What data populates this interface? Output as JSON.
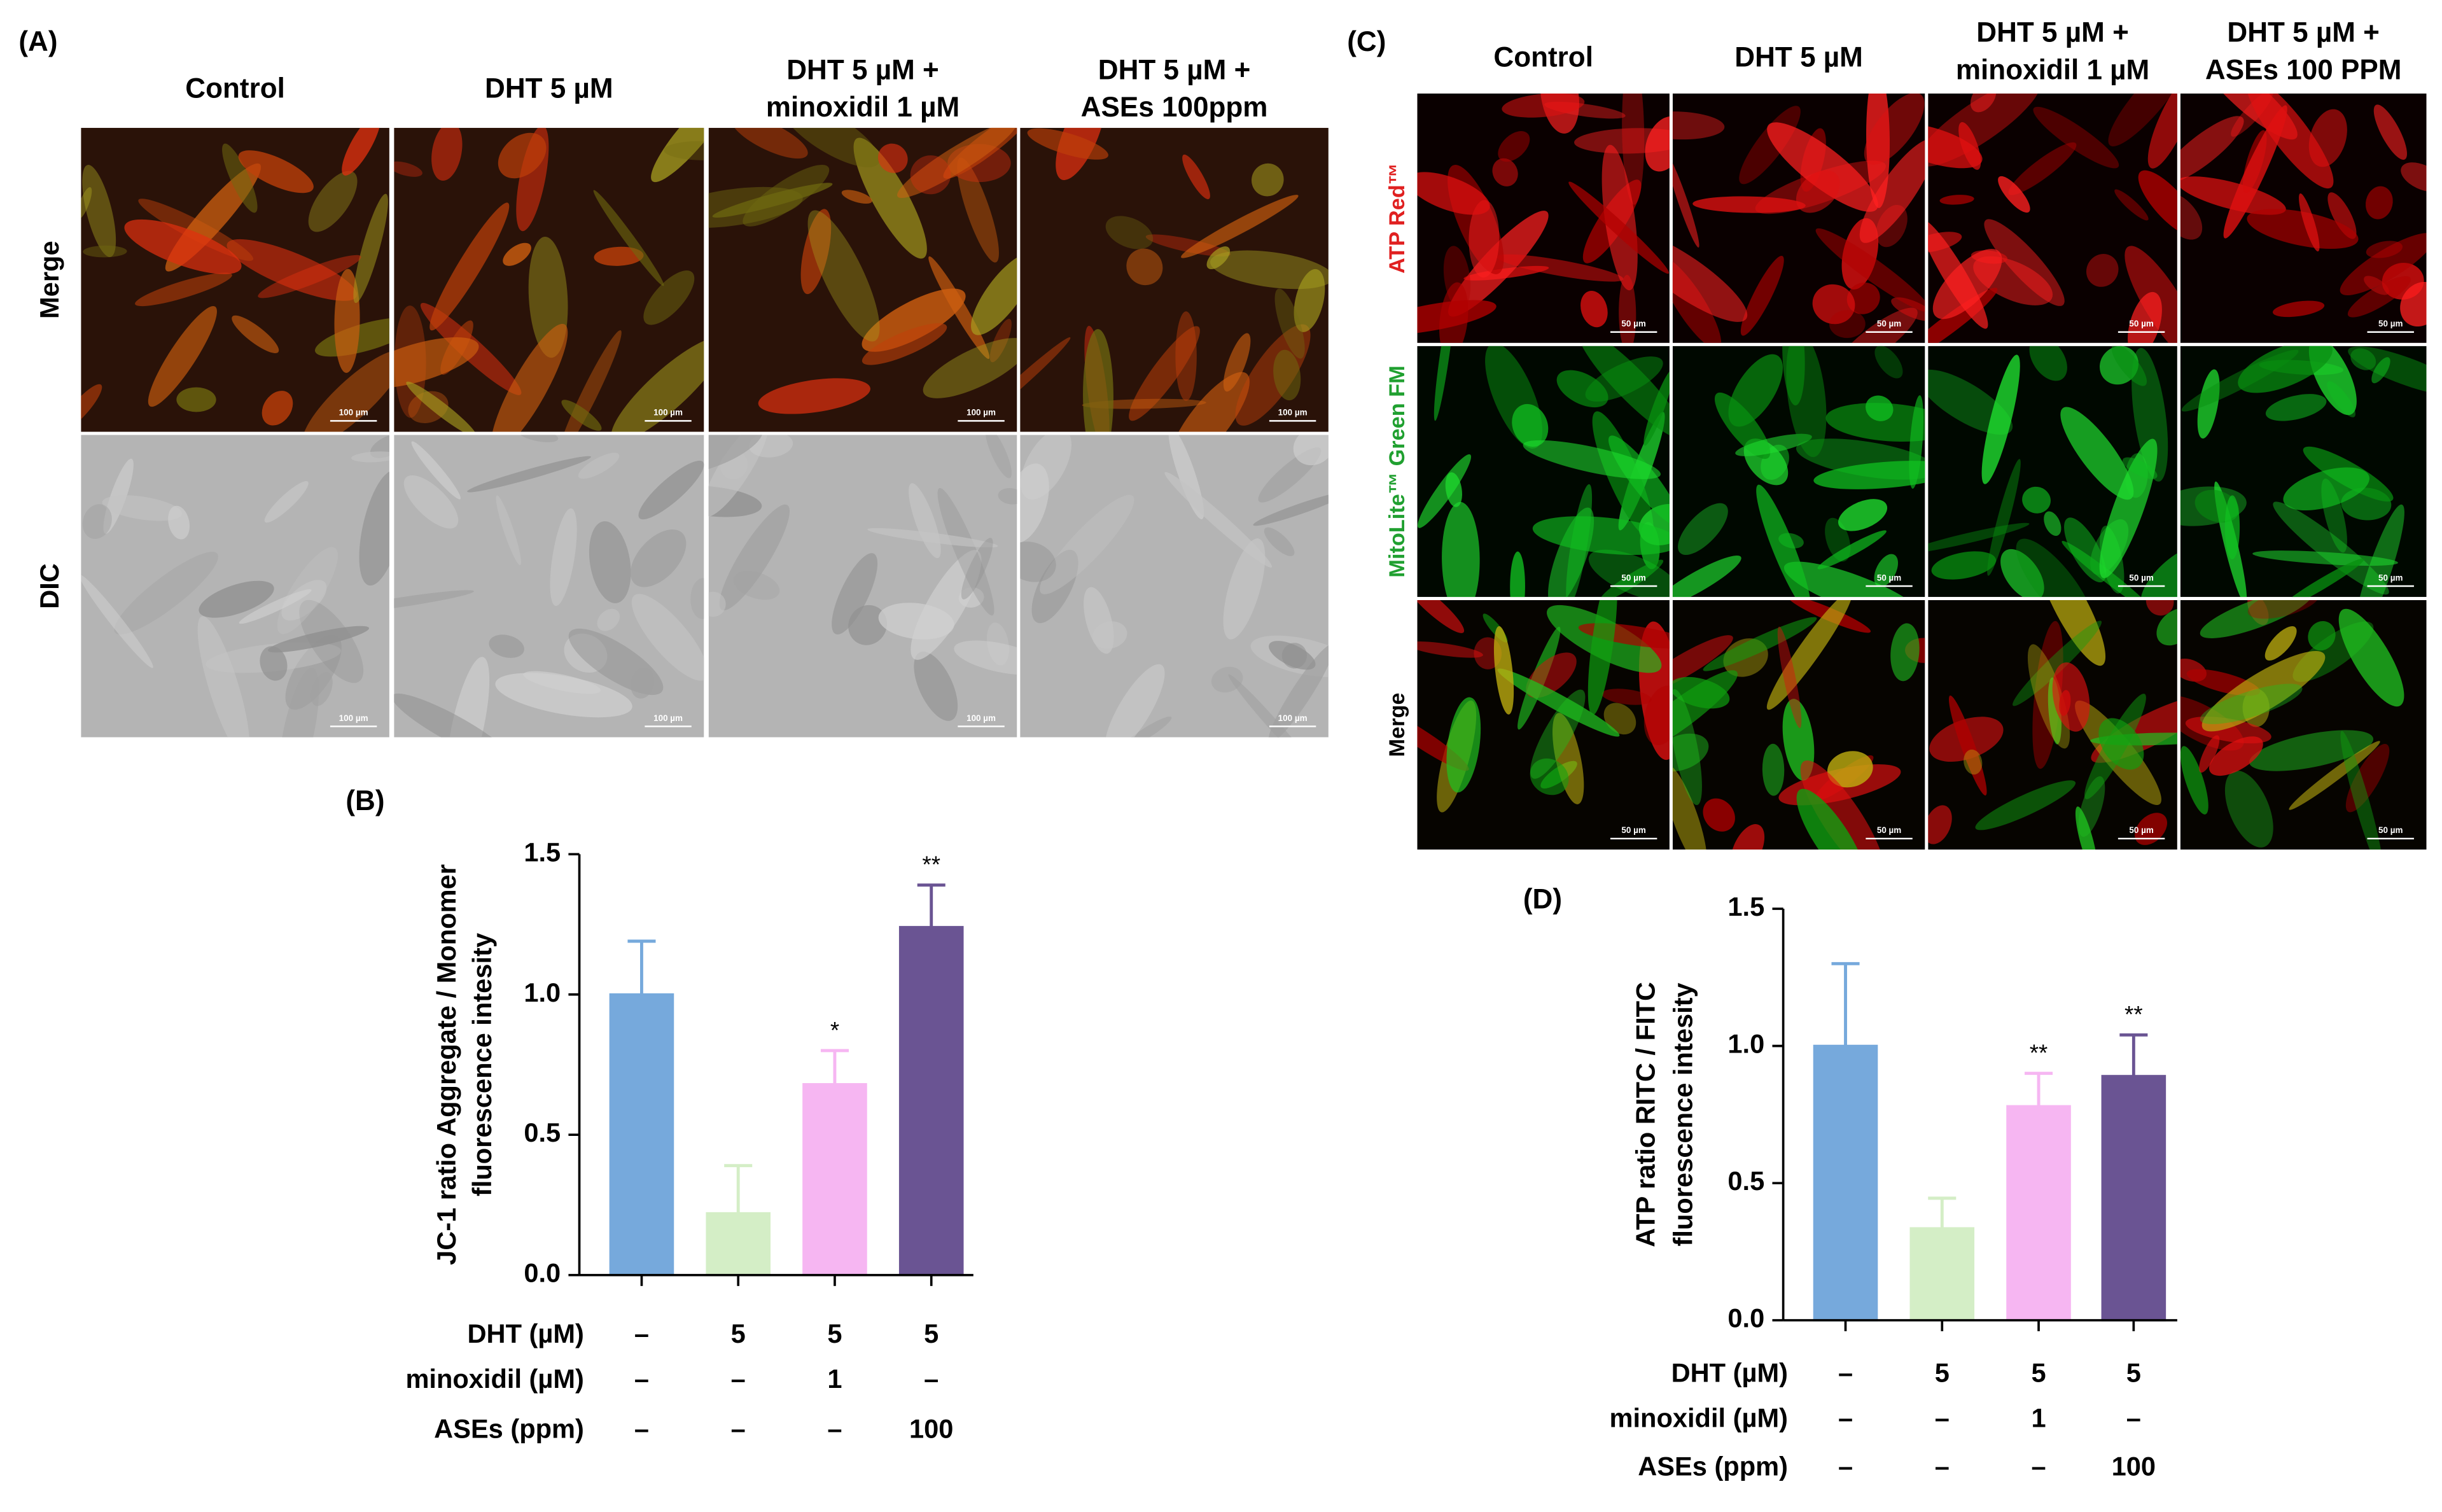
{
  "panel_a": {
    "label": "(A)",
    "columns": [
      [
        "Control"
      ],
      [
        "DHT 5 µM"
      ],
      [
        "DHT 5 µM +",
        "minoxidil 1 µM"
      ],
      [
        "DHT 5 µM +",
        "ASEs 100ppm"
      ]
    ],
    "rows": [
      {
        "label": "Merge",
        "color": "#000000"
      },
      {
        "label": "DIC",
        "color": "#000000"
      }
    ],
    "scale_bar": "100 µm"
  },
  "panel_c": {
    "label": "(C)",
    "columns": [
      [
        "Control"
      ],
      [
        "DHT 5 µM"
      ],
      [
        "DHT 5 µM +",
        "minoxidil 1 µM"
      ],
      [
        "DHT 5 µM +",
        "ASEs 100 PPM"
      ]
    ],
    "rows": [
      {
        "label": "ATP Red™",
        "color": "#e02020"
      },
      {
        "label": "MitoLite™ Green FM",
        "color": "#20a030"
      },
      {
        "label": "Merge",
        "color": "#000000"
      }
    ],
    "scale_bar": "50 µm"
  },
  "chart_data": [
    {
      "type": "bar",
      "panel_label": "(B)",
      "y_label": [
        "JC-1 ratio Aggregate / Monomer",
        "fluorescence intesity"
      ],
      "values": [
        1.0,
        0.22,
        0.68,
        1.24
      ],
      "errors": [
        0.19,
        0.17,
        0.12,
        0.15
      ],
      "annotations": [
        null,
        null,
        "*",
        "**"
      ],
      "colors": [
        "#76a9dc",
        "#d4eec6",
        "#f6b6f2",
        "#6a5493"
      ],
      "ylim": [
        0,
        1.5
      ],
      "yticks": [
        {
          "value": 0,
          "label": "0.0"
        },
        {
          "value": 0.5,
          "label": "0.5"
        },
        {
          "value": 1,
          "label": "1.0"
        },
        {
          "value": 1.5,
          "label": "1.5"
        }
      ],
      "treatment_rows": [
        {
          "label": "DHT (µM)",
          "entries": [
            "–",
            "5",
            "5",
            "5"
          ]
        },
        {
          "label": "minoxidil (µM)",
          "entries": [
            "–",
            "–",
            "1",
            "–"
          ]
        },
        {
          "label": "ASEs (ppm)",
          "entries": [
            "–",
            "–",
            "–",
            "100"
          ]
        }
      ]
    },
    {
      "type": "bar",
      "panel_label": "(D)",
      "y_label": [
        "ATP ratio RITC / FITC",
        "fluorescence intesity"
      ],
      "values": [
        1.0,
        0.335,
        0.78,
        0.89
      ],
      "errors": [
        0.3,
        0.11,
        0.12,
        0.15
      ],
      "annotations": [
        null,
        null,
        "**",
        "**"
      ],
      "colors": [
        "#76a9dc",
        "#d4eec6",
        "#f6b6f2",
        "#6a5493"
      ],
      "ylim": [
        0,
        1.5
      ],
      "yticks": [
        {
          "value": 0,
          "label": "0.0"
        },
        {
          "value": 0.5,
          "label": "0.5"
        },
        {
          "value": 1,
          "label": "1.0"
        },
        {
          "value": 1.5,
          "label": "1.5"
        }
      ],
      "treatment_rows": [
        {
          "label": "DHT (µM)",
          "entries": [
            "–",
            "5",
            "5",
            "5"
          ]
        },
        {
          "label": "minoxidil (µM)",
          "entries": [
            "–",
            "–",
            "1",
            "–"
          ]
        },
        {
          "label": "ASEs (ppm)",
          "entries": [
            "–",
            "–",
            "–",
            "100"
          ]
        }
      ]
    }
  ]
}
